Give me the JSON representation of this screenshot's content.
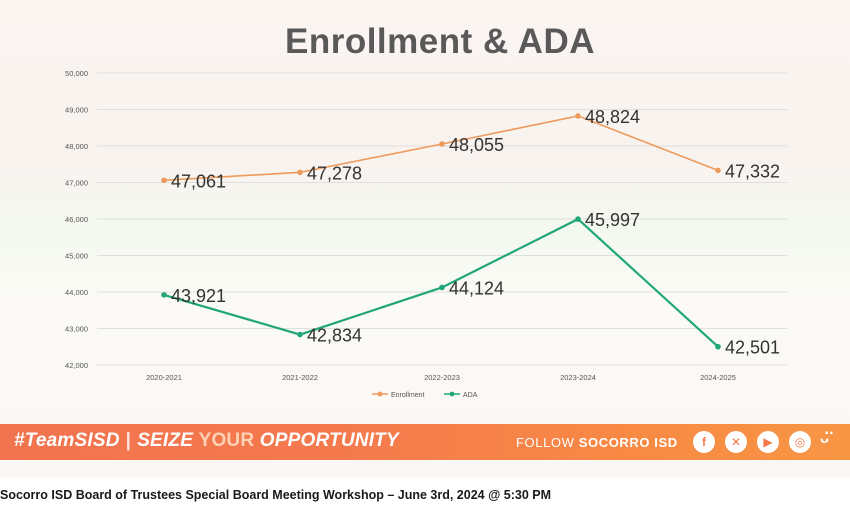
{
  "slide": {
    "title": "Enrollment & ADA"
  },
  "chart_data": {
    "type": "line",
    "title": "Enrollment & ADA",
    "categories": [
      "2020-2021",
      "2021-2022",
      "2022-2023",
      "2023-2024",
      "2024-2025"
    ],
    "ylim": [
      42000,
      50000
    ],
    "yticks": [
      42000,
      43000,
      44000,
      45000,
      46000,
      47000,
      48000,
      49000,
      50000
    ],
    "ytick_labels": [
      "42,000",
      "43,000",
      "44,000",
      "45,000",
      "46,000",
      "47,000",
      "48,000",
      "49,000",
      "50,000"
    ],
    "grid": true,
    "legend_position": "bottom",
    "series": [
      {
        "name": "Enrollment",
        "color": "#ee9a5c",
        "values": [
          47061,
          47278,
          48055,
          48824,
          47332
        ],
        "labels": [
          "47,061",
          "47,278",
          "48,055",
          "48,824",
          "47,332"
        ]
      },
      {
        "name": "ADA",
        "color": "#21a67a",
        "values": [
          43921,
          42834,
          44124,
          45997,
          42501
        ],
        "labels": [
          "43,921",
          "42,834",
          "44,124",
          "45,997",
          "42,501"
        ]
      }
    ]
  },
  "banner": {
    "hashtag": "#TeamSISD",
    "slogan_1": "SEIZE",
    "slogan_2": "YOUR",
    "slogan_3": "OPPORTUNITY",
    "follow_label": "FOLLOW",
    "follow_name": "SOCORRO ISD",
    "icons": [
      "facebook-icon",
      "x-icon",
      "youtube-icon",
      "instagram-icon",
      "snapchat-icon"
    ]
  },
  "caption": "Socorro ISD Board of Trustees Special Board Meeting Workshop – June 3rd, 2024 @ 5:30 PM"
}
